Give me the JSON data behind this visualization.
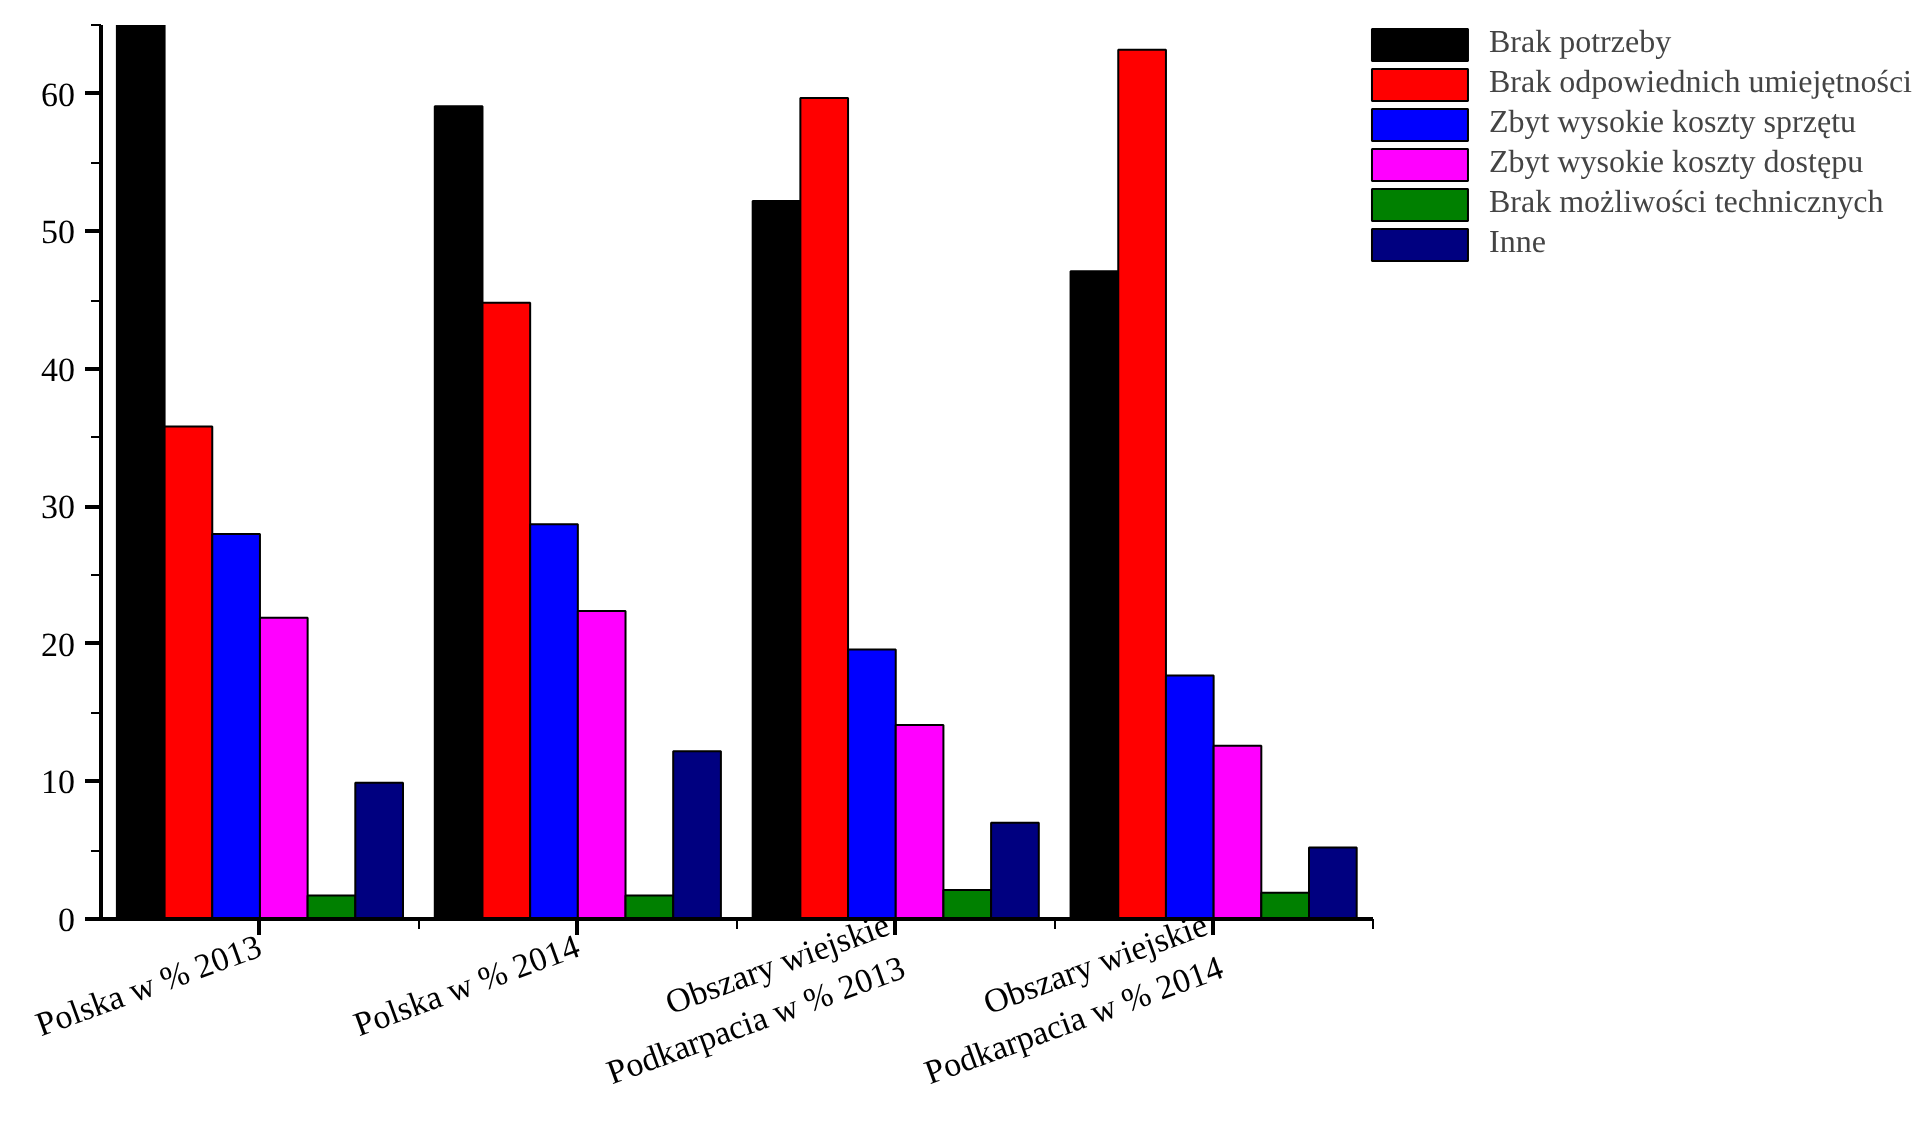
{
  "chart_data": {
    "type": "bar",
    "categories": [
      "Polska w % 2013",
      "Polska w % 2014",
      "Obszary wiejskie\nPodkarpacia w % 2013",
      "Obszary wiejskie\nPodkarpacia w % 2014"
    ],
    "series": [
      {
        "name": "Brak potrzeby",
        "color": "#000000",
        "values": [
          65,
          59.1,
          52.2,
          47.1
        ]
      },
      {
        "name": "Brak odpowiednich umiejętności",
        "color": "#ff0000",
        "values": [
          35.8,
          44.8,
          59.7,
          63.2
        ]
      },
      {
        "name": "Zbyt wysokie koszty sprzętu",
        "color": "#0000ff",
        "values": [
          28,
          28.7,
          19.6,
          17.7
        ]
      },
      {
        "name": "Zbyt wysokie koszty dostępu",
        "color": "#ff00ff",
        "values": [
          21.9,
          22.4,
          14.1,
          12.6
        ]
      },
      {
        "name": "Brak możliwości technicznych",
        "color": "#008000",
        "values": [
          1.7,
          1.7,
          2.1,
          1.9
        ]
      },
      {
        "name": "Inne",
        "color": "#000080",
        "values": [
          9.9,
          12.2,
          7.0,
          5.2
        ]
      }
    ],
    "ylim": [
      0,
      65
    ],
    "yticks": [
      0,
      10,
      20,
      30,
      40,
      50,
      60
    ],
    "grid": false,
    "legend": "top right"
  }
}
